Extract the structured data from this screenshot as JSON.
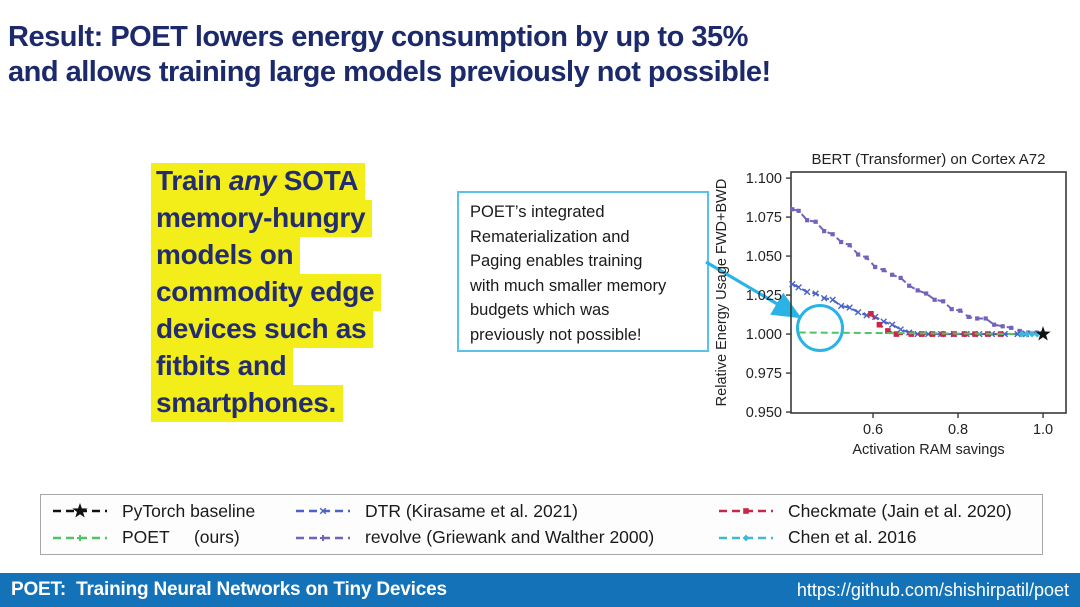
{
  "slide": {
    "title_line1": "Result: POET lowers energy consumption by up to 35%",
    "title_line2": "and allows training large models previously not possible!",
    "title_color": "#1c2a6b"
  },
  "highlight": {
    "bg_color": "#f3ee19",
    "text_color": "#232d6e",
    "line1_pre": "Train ",
    "line1_italic": "any",
    "line1_post": " SOTA",
    "lines_rest": [
      "memory-hungry",
      "models on",
      "commodity edge",
      "devices such as",
      "fitbits and",
      "smartphones."
    ]
  },
  "callout": {
    "border_color": "#59c2e8",
    "lines": [
      "POET’s integrated",
      "Rematerialization and",
      "Paging enables training",
      "with much smaller memory",
      "budgets which was",
      "previously not possible!"
    ]
  },
  "annotation": {
    "circle_color": "#29b4e5",
    "arrow_color": "#29b4e5"
  },
  "chart_data": {
    "type": "line",
    "title": "BERT (Transformer) on Cortex A72",
    "xlabel": "Activation RAM savings",
    "ylabel": "Relative Energy Usage FWD+BWD",
    "xlim": [
      0.407,
      1.054
    ],
    "ylim": [
      0.9494,
      1.1039
    ],
    "grid": false,
    "legend_position": "bottom-outside",
    "xticks": [
      {
        "v": 0.6,
        "label": "0.6"
      },
      {
        "v": 0.8,
        "label": "0.8"
      },
      {
        "v": 1.0,
        "label": "1.0"
      }
    ],
    "yticks": [
      {
        "v": 0.95,
        "label": "0.950"
      },
      {
        "v": 0.975,
        "label": "0.975"
      },
      {
        "v": 1.0,
        "label": "1.000"
      },
      {
        "v": 1.025,
        "label": "1.025"
      },
      {
        "v": 1.05,
        "label": "1.050"
      },
      {
        "v": 1.075,
        "label": "1.075"
      },
      {
        "v": 1.1,
        "label": "1.100"
      }
    ],
    "series": [
      {
        "name": "revolve (Griewank and Walther 2000)",
        "color": "#6f64bb",
        "marker": "square",
        "dashed": true,
        "points": [
          [
            0.41,
            1.08
          ],
          [
            0.425,
            1.079
          ],
          [
            0.445,
            1.073
          ],
          [
            0.465,
            1.072
          ],
          [
            0.485,
            1.066
          ],
          [
            0.505,
            1.064
          ],
          [
            0.525,
            1.059
          ],
          [
            0.545,
            1.057
          ],
          [
            0.565,
            1.051
          ],
          [
            0.585,
            1.049
          ],
          [
            0.605,
            1.043
          ],
          [
            0.625,
            1.041
          ],
          [
            0.645,
            1.038
          ],
          [
            0.665,
            1.036
          ],
          [
            0.685,
            1.031
          ],
          [
            0.705,
            1.028
          ],
          [
            0.725,
            1.026
          ],
          [
            0.745,
            1.022
          ],
          [
            0.765,
            1.021
          ],
          [
            0.785,
            1.016
          ],
          [
            0.805,
            1.015
          ],
          [
            0.825,
            1.011
          ],
          [
            0.845,
            1.01
          ],
          [
            0.865,
            1.01
          ],
          [
            0.885,
            1.006
          ],
          [
            0.905,
            1.005
          ],
          [
            0.925,
            1.004
          ],
          [
            0.945,
            1.002
          ],
          [
            0.965,
            1.001
          ],
          [
            0.985,
            1.001
          ]
        ]
      },
      {
        "name": "DTR (Kirasame et al. 2021)",
        "color": "#4a63c8",
        "marker": "x",
        "dashed": true,
        "points": [
          [
            0.41,
            1.032
          ],
          [
            0.425,
            1.03
          ],
          [
            0.445,
            1.027
          ],
          [
            0.465,
            1.026
          ],
          [
            0.485,
            1.023
          ],
          [
            0.505,
            1.022
          ],
          [
            0.525,
            1.018
          ],
          [
            0.545,
            1.017
          ],
          [
            0.565,
            1.014
          ],
          [
            0.585,
            1.012
          ],
          [
            0.605,
            1.011
          ],
          [
            0.625,
            1.008
          ],
          [
            0.645,
            1.006
          ],
          [
            0.665,
            1.003
          ],
          [
            0.685,
            1.001
          ],
          [
            0.705,
            1.0
          ],
          [
            0.73,
            1.0
          ],
          [
            0.76,
            1.0
          ],
          [
            0.79,
            1.0
          ],
          [
            0.82,
            1.0
          ],
          [
            0.85,
            1.0
          ],
          [
            0.88,
            1.0
          ],
          [
            0.91,
            1.0
          ],
          [
            0.94,
            1.0
          ],
          [
            0.96,
            1.0
          ]
        ]
      },
      {
        "name": "Checkmate (Jain et al. 2020)",
        "color": "#c62848",
        "marker": "square-lg",
        "dashed": true,
        "points": [
          [
            0.595,
            1.013
          ],
          [
            0.615,
            1.006
          ],
          [
            0.635,
            1.002
          ],
          [
            0.655,
            1.0
          ],
          [
            0.69,
            1.0
          ],
          [
            0.715,
            1.0
          ],
          [
            0.74,
            1.0
          ],
          [
            0.765,
            1.0
          ],
          [
            0.79,
            1.0
          ],
          [
            0.815,
            1.0
          ],
          [
            0.84,
            1.0
          ],
          [
            0.87,
            1.0
          ],
          [
            0.9,
            1.0
          ]
        ]
      },
      {
        "name": "POET (ours)",
        "color": "#4ec465",
        "marker": "none",
        "dashed": true,
        "points": [
          [
            0.425,
            1.001
          ],
          [
            0.985,
            1.0
          ]
        ]
      },
      {
        "name": "Chen et al. 2016",
        "color": "#3fb9d9",
        "marker": "diamond",
        "dashed": true,
        "points": [
          [
            0.95,
            1.0
          ],
          [
            0.962,
            1.0
          ],
          [
            0.974,
            1.0
          ],
          [
            0.986,
            1.0
          ]
        ]
      },
      {
        "name": "PyTorch baseline",
        "color": "#111111",
        "marker": "star",
        "dashed": true,
        "points": [
          [
            1.0,
            1.0
          ]
        ]
      }
    ],
    "annotation_circle_at": {
      "x": 0.46,
      "y": 1.001
    }
  },
  "legend": {
    "items": [
      {
        "label": "PyTorch baseline",
        "color": "#111111",
        "marker": "star"
      },
      {
        "label": "POET     (ours)",
        "color": "#4ec465",
        "marker": "plus"
      },
      {
        "label": "DTR (Kirasame et al. 2021)",
        "color": "#4a63c8",
        "marker": "x"
      },
      {
        "label": "revolve (Griewank and Walther 2000)",
        "color": "#6f64bb",
        "marker": "plus"
      },
      {
        "label": "Checkmate (Jain et al. 2020)",
        "color": "#c62848",
        "marker": "square-lg"
      },
      {
        "label": "Chen et al. 2016",
        "color": "#3fb9d9",
        "marker": "diamond"
      }
    ]
  },
  "footer": {
    "bg_color": "#1472b8",
    "left": "POET:  Training Neural Networks on Tiny Devices",
    "right": "https://github.com/shishirpatil/poet"
  }
}
